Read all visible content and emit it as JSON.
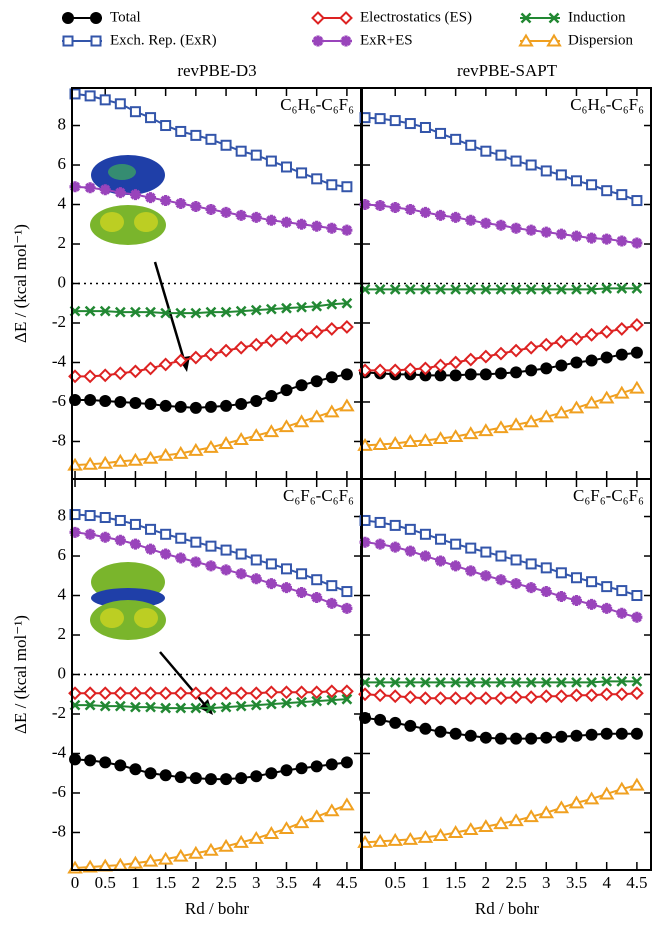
{
  "chart_data": [
    {
      "type": "line",
      "title": "revPBE-D3",
      "annotation": "C₆H₆-C₆F₆",
      "ylabel": "ΔE / (kcal mol⁻¹)",
      "x": [
        0,
        0.25,
        0.5,
        0.75,
        1,
        1.25,
        1.5,
        1.75,
        2,
        2.25,
        2.5,
        2.75,
        3,
        3.25,
        3.5,
        3.75,
        4,
        4.25,
        4.5
      ],
      "xlim": [
        -0.05,
        4.75
      ],
      "xticks": [
        0,
        0.5,
        1,
        1.5,
        2,
        2.5,
        3,
        3.5,
        4,
        4.5
      ],
      "ylim": [
        -9.9,
        9.9
      ],
      "yticks": [
        -8,
        -6,
        -4,
        -2,
        0,
        2,
        4,
        6,
        8
      ],
      "zero_line": true,
      "series": [
        {
          "name": "Total",
          "color": "#000000",
          "marker": "circle",
          "values": [
            -5.9,
            -5.9,
            -5.95,
            -6.0,
            -6.05,
            -6.1,
            -6.2,
            -6.25,
            -6.3,
            -6.25,
            -6.2,
            -6.1,
            -5.95,
            -5.7,
            -5.4,
            -5.15,
            -4.95,
            -4.75,
            -4.6
          ]
        },
        {
          "name": "Exch. Rep. (ExR)",
          "color": "#3355aa",
          "marker": "square",
          "values": [
            9.6,
            9.5,
            9.3,
            9.1,
            8.7,
            8.4,
            8.0,
            7.7,
            7.5,
            7.3,
            7.0,
            6.7,
            6.5,
            6.2,
            5.9,
            5.6,
            5.3,
            5.0,
            4.9
          ]
        },
        {
          "name": "Electrostatics (ES)",
          "color": "#dd2222",
          "marker": "diamond",
          "values": [
            -4.7,
            -4.7,
            -4.65,
            -4.55,
            -4.45,
            -4.3,
            -4.1,
            -3.9,
            -3.75,
            -3.6,
            -3.4,
            -3.25,
            -3.1,
            -2.9,
            -2.75,
            -2.6,
            -2.45,
            -2.3,
            -2.2
          ]
        },
        {
          "name": "ExR+ES",
          "color": "#9944bb",
          "marker": "star",
          "values": [
            4.9,
            4.85,
            4.75,
            4.6,
            4.5,
            4.35,
            4.2,
            4.05,
            3.9,
            3.75,
            3.6,
            3.45,
            3.35,
            3.2,
            3.1,
            3.0,
            2.9,
            2.8,
            2.7
          ]
        },
        {
          "name": "Induction",
          "color": "#228833",
          "marker": "x",
          "values": [
            -1.4,
            -1.4,
            -1.4,
            -1.45,
            -1.45,
            -1.45,
            -1.5,
            -1.5,
            -1.5,
            -1.45,
            -1.45,
            -1.4,
            -1.35,
            -1.3,
            -1.25,
            -1.2,
            -1.15,
            -1.05,
            -1.0
          ]
        },
        {
          "name": "Dispersion",
          "color": "#f0a020",
          "marker": "triangle",
          "values": [
            -9.2,
            -9.15,
            -9.1,
            -9.0,
            -8.95,
            -8.85,
            -8.7,
            -8.6,
            -8.45,
            -8.3,
            -8.1,
            -7.9,
            -7.7,
            -7.5,
            -7.25,
            -7.0,
            -6.75,
            -6.5,
            -6.2
          ]
        }
      ]
    },
    {
      "type": "line",
      "title": "revPBE-SAPT",
      "annotation": "C₆H₆-C₆F₆",
      "x": [
        0,
        0.25,
        0.5,
        0.75,
        1,
        1.25,
        1.5,
        1.75,
        2,
        2.25,
        2.5,
        2.75,
        3,
        3.25,
        3.5,
        3.75,
        4,
        4.25,
        4.5
      ],
      "xlim": [
        -0.05,
        4.75
      ],
      "xticks": [
        0.5,
        1,
        1.5,
        2,
        2.5,
        3,
        3.5,
        4,
        4.5
      ],
      "ylim": [
        -9.9,
        9.9
      ],
      "yticks": [
        -8,
        -6,
        -4,
        -2,
        0,
        2,
        4,
        6,
        8
      ],
      "zero_line": true,
      "series": [
        {
          "name": "Total",
          "color": "#000000",
          "marker": "circle",
          "values": [
            -4.5,
            -4.55,
            -4.6,
            -4.6,
            -4.65,
            -4.65,
            -4.65,
            -4.6,
            -4.6,
            -4.55,
            -4.5,
            -4.4,
            -4.3,
            -4.15,
            -4.0,
            -3.9,
            -3.75,
            -3.6,
            -3.5
          ]
        },
        {
          "name": "Exch. Rep. (ExR)",
          "color": "#3355aa",
          "marker": "square",
          "values": [
            8.4,
            8.35,
            8.25,
            8.1,
            7.9,
            7.6,
            7.3,
            7.0,
            6.7,
            6.5,
            6.2,
            6.0,
            5.7,
            5.5,
            5.2,
            5.0,
            4.7,
            4.5,
            4.2
          ]
        },
        {
          "name": "Electrostatics (ES)",
          "color": "#dd2222",
          "marker": "diamond",
          "values": [
            -4.4,
            -4.4,
            -4.4,
            -4.35,
            -4.3,
            -4.15,
            -4.0,
            -3.85,
            -3.7,
            -3.55,
            -3.4,
            -3.25,
            -3.1,
            -2.95,
            -2.8,
            -2.6,
            -2.45,
            -2.3,
            -2.1
          ]
        },
        {
          "name": "ExR+ES",
          "color": "#9944bb",
          "marker": "star",
          "values": [
            4.0,
            3.95,
            3.85,
            3.75,
            3.6,
            3.45,
            3.35,
            3.2,
            3.05,
            2.95,
            2.8,
            2.7,
            2.6,
            2.5,
            2.4,
            2.3,
            2.25,
            2.15,
            2.05
          ]
        },
        {
          "name": "Induction",
          "color": "#228833",
          "marker": "x",
          "values": [
            -0.3,
            -0.3,
            -0.3,
            -0.3,
            -0.3,
            -0.3,
            -0.3,
            -0.3,
            -0.3,
            -0.3,
            -0.3,
            -0.3,
            -0.3,
            -0.3,
            -0.3,
            -0.3,
            -0.25,
            -0.25,
            -0.25
          ]
        },
        {
          "name": "Dispersion",
          "color": "#f0a020",
          "marker": "triangle",
          "values": [
            -8.2,
            -8.15,
            -8.1,
            -8.0,
            -7.95,
            -7.85,
            -7.75,
            -7.6,
            -7.45,
            -7.3,
            -7.15,
            -7.0,
            -6.75,
            -6.55,
            -6.3,
            -6.05,
            -5.8,
            -5.55,
            -5.3
          ]
        }
      ]
    },
    {
      "type": "line",
      "annotation": "C₆F₆-C₆F₆",
      "ylabel": "ΔE / (kcal mol⁻¹)",
      "xlabel": "Rd / bohr",
      "x": [
        0,
        0.25,
        0.5,
        0.75,
        1,
        1.25,
        1.5,
        1.75,
        2,
        2.25,
        2.5,
        2.75,
        3,
        3.25,
        3.5,
        3.75,
        4,
        4.25,
        4.5
      ],
      "xlim": [
        -0.05,
        4.75
      ],
      "xticks": [
        0,
        0.5,
        1,
        1.5,
        2,
        2.5,
        3,
        3.5,
        4,
        4.5
      ],
      "ylim": [
        -9.9,
        9.9
      ],
      "yticks": [
        -8,
        -6,
        -4,
        -2,
        0,
        2,
        4,
        6,
        8
      ],
      "zero_line": true,
      "series": [
        {
          "name": "Total",
          "color": "#000000",
          "marker": "circle",
          "values": [
            -4.3,
            -4.35,
            -4.45,
            -4.6,
            -4.8,
            -5.0,
            -5.1,
            -5.2,
            -5.25,
            -5.3,
            -5.3,
            -5.25,
            -5.15,
            -5.0,
            -4.85,
            -4.75,
            -4.65,
            -4.55,
            -4.45
          ]
        },
        {
          "name": "Exch. Rep. (ExR)",
          "color": "#3355aa",
          "marker": "square",
          "values": [
            8.1,
            8.05,
            7.95,
            7.8,
            7.6,
            7.35,
            7.1,
            6.9,
            6.7,
            6.5,
            6.3,
            6.1,
            5.8,
            5.6,
            5.35,
            5.1,
            4.8,
            4.5,
            4.2
          ]
        },
        {
          "name": "Electrostatics (ES)",
          "color": "#dd2222",
          "marker": "diamond",
          "values": [
            -0.95,
            -0.95,
            -0.95,
            -0.95,
            -0.95,
            -0.95,
            -0.95,
            -0.95,
            -0.95,
            -0.95,
            -0.95,
            -0.95,
            -0.95,
            -0.9,
            -0.9,
            -0.9,
            -0.9,
            -0.85,
            -0.85
          ]
        },
        {
          "name": "ExR+ES",
          "color": "#9944bb",
          "marker": "star",
          "values": [
            7.2,
            7.1,
            6.95,
            6.8,
            6.6,
            6.35,
            6.1,
            5.9,
            5.7,
            5.5,
            5.3,
            5.1,
            4.85,
            4.6,
            4.4,
            4.15,
            3.9,
            3.6,
            3.35
          ]
        },
        {
          "name": "Induction",
          "color": "#228833",
          "marker": "x",
          "values": [
            -1.55,
            -1.55,
            -1.6,
            -1.6,
            -1.65,
            -1.65,
            -1.7,
            -1.7,
            -1.7,
            -1.7,
            -1.65,
            -1.6,
            -1.55,
            -1.5,
            -1.45,
            -1.4,
            -1.35,
            -1.3,
            -1.25
          ]
        },
        {
          "name": "Dispersion",
          "color": "#f0a020",
          "marker": "triangle",
          "values": [
            -9.8,
            -9.75,
            -9.7,
            -9.65,
            -9.55,
            -9.45,
            -9.35,
            -9.2,
            -9.05,
            -8.9,
            -8.7,
            -8.5,
            -8.3,
            -8.05,
            -7.8,
            -7.5,
            -7.2,
            -6.9,
            -6.6
          ]
        }
      ]
    },
    {
      "type": "line",
      "annotation": "C₆F₆-C₆F₆",
      "xlabel": "Rd / bohr",
      "x": [
        0,
        0.25,
        0.5,
        0.75,
        1,
        1.25,
        1.5,
        1.75,
        2,
        2.25,
        2.5,
        2.75,
        3,
        3.25,
        3.5,
        3.75,
        4,
        4.25,
        4.5
      ],
      "xlim": [
        -0.05,
        4.75
      ],
      "xticks": [
        0.5,
        1,
        1.5,
        2,
        2.5,
        3,
        3.5,
        4,
        4.5
      ],
      "ylim": [
        -9.9,
        9.9
      ],
      "yticks": [
        -8,
        -6,
        -4,
        -2,
        0,
        2,
        4,
        6,
        8
      ],
      "zero_line": true,
      "series": [
        {
          "name": "Total",
          "color": "#000000",
          "marker": "circle",
          "values": [
            -2.2,
            -2.3,
            -2.45,
            -2.6,
            -2.75,
            -2.9,
            -3.0,
            -3.1,
            -3.2,
            -3.25,
            -3.25,
            -3.25,
            -3.2,
            -3.15,
            -3.1,
            -3.05,
            -3.0,
            -3.0,
            -3.0
          ]
        },
        {
          "name": "Exch. Rep. (ExR)",
          "color": "#3355aa",
          "marker": "square",
          "values": [
            7.8,
            7.7,
            7.55,
            7.35,
            7.1,
            6.85,
            6.6,
            6.4,
            6.2,
            6.0,
            5.8,
            5.6,
            5.4,
            5.15,
            4.9,
            4.7,
            4.45,
            4.25,
            4.0
          ]
        },
        {
          "name": "Electrostatics (ES)",
          "color": "#dd2222",
          "marker": "diamond",
          "values": [
            -1.0,
            -1.05,
            -1.1,
            -1.15,
            -1.2,
            -1.2,
            -1.2,
            -1.2,
            -1.2,
            -1.2,
            -1.15,
            -1.15,
            -1.1,
            -1.1,
            -1.05,
            -1.05,
            -1.0,
            -1.0,
            -0.95
          ]
        },
        {
          "name": "ExR+ES",
          "color": "#9944bb",
          "marker": "star",
          "values": [
            6.7,
            6.6,
            6.45,
            6.25,
            6.0,
            5.75,
            5.5,
            5.25,
            5.0,
            4.8,
            4.6,
            4.4,
            4.2,
            3.95,
            3.75,
            3.55,
            3.35,
            3.1,
            2.9
          ]
        },
        {
          "name": "Induction",
          "color": "#228833",
          "marker": "x",
          "values": [
            -0.4,
            -0.4,
            -0.4,
            -0.4,
            -0.4,
            -0.4,
            -0.4,
            -0.4,
            -0.4,
            -0.4,
            -0.4,
            -0.4,
            -0.4,
            -0.4,
            -0.4,
            -0.4,
            -0.35,
            -0.35,
            -0.35
          ]
        },
        {
          "name": "Dispersion",
          "color": "#f0a020",
          "marker": "triangle",
          "values": [
            -8.5,
            -8.45,
            -8.4,
            -8.35,
            -8.25,
            -8.15,
            -8.0,
            -7.85,
            -7.7,
            -7.55,
            -7.4,
            -7.2,
            -7.0,
            -6.75,
            -6.5,
            -6.3,
            -6.05,
            -5.8,
            -5.6
          ]
        }
      ]
    }
  ]
}
